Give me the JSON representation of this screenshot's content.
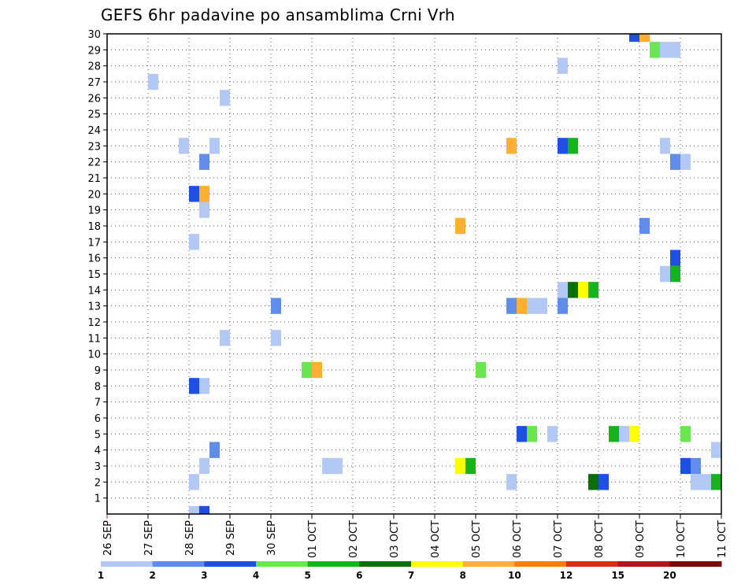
{
  "chart_data": {
    "type": "heatmap",
    "title": "GEFS 6hr padavine po ansamblima Crni Vrh",
    "xlabel": "",
    "ylabel": "",
    "x_ticks": [
      "26 SEP",
      "27 SEP",
      "28 SEP",
      "29 SEP",
      "30 SEP",
      "01 OCT",
      "02 OCT",
      "03 OCT",
      "04 OCT",
      "05 OCT",
      "06 OCT",
      "07 OCT",
      "08 OCT",
      "09 OCT",
      "10 OCT",
      "11 OCT"
    ],
    "xlim": [
      0,
      15
    ],
    "y_ticks": [
      1,
      2,
      3,
      4,
      5,
      6,
      7,
      8,
      9,
      10,
      11,
      12,
      13,
      14,
      15,
      16,
      17,
      18,
      19,
      20,
      21,
      22,
      23,
      24,
      25,
      26,
      27,
      28,
      29,
      30
    ],
    "ylim": [
      0,
      30
    ],
    "grid": true,
    "colorbar": {
      "labels": [
        "1",
        "2",
        "3",
        "4",
        "5",
        "6",
        "7",
        "8",
        "10",
        "12",
        "15",
        "20"
      ],
      "colors": [
        "#b4c8f5",
        "#5f8de8",
        "#1e4fe0",
        "#6ae650",
        "#15b41e",
        "#0a6e0a",
        "#ffff00",
        "#ffb030",
        "#ff7d00",
        "#e02a14",
        "#b4141e",
        "#780a0a"
      ]
    },
    "cells_note_units": "x in days since 26 SEP 00z, y = ensemble member, c = colour class index",
    "cells": [
      {
        "x": 2.0,
        "y": 0,
        "c": 0
      },
      {
        "x": 2.25,
        "y": 0,
        "c": 2
      },
      {
        "x": 2.0,
        "y": 2,
        "c": 0
      },
      {
        "x": 2.25,
        "y": 3,
        "c": 0
      },
      {
        "x": 5.25,
        "y": 3,
        "c": 0
      },
      {
        "x": 5.5,
        "y": 3,
        "c": 0
      },
      {
        "x": 8.5,
        "y": 3,
        "c": 6
      },
      {
        "x": 8.75,
        "y": 3,
        "c": 4
      },
      {
        "x": 14.0,
        "y": 3,
        "c": 2
      },
      {
        "x": 14.25,
        "y": 3,
        "c": 1
      },
      {
        "x": 2.5,
        "y": 4,
        "c": 1
      },
      {
        "x": 14.75,
        "y": 4,
        "c": 0
      },
      {
        "x": 10.0,
        "y": 5,
        "c": 2
      },
      {
        "x": 10.25,
        "y": 5,
        "c": 3
      },
      {
        "x": 10.75,
        "y": 5,
        "c": 0
      },
      {
        "x": 12.25,
        "y": 5,
        "c": 4
      },
      {
        "x": 12.5,
        "y": 5,
        "c": 0
      },
      {
        "x": 12.75,
        "y": 5,
        "c": 6
      },
      {
        "x": 14.0,
        "y": 5,
        "c": 3
      },
      {
        "x": 2.0,
        "y": 8,
        "c": 2
      },
      {
        "x": 2.25,
        "y": 8,
        "c": 0
      },
      {
        "x": 4.75,
        "y": 9,
        "c": 3
      },
      {
        "x": 5.0,
        "y": 9,
        "c": 7
      },
      {
        "x": 9.0,
        "y": 9,
        "c": 3
      },
      {
        "x": 2.75,
        "y": 11,
        "c": 0
      },
      {
        "x": 4.0,
        "y": 11,
        "c": 0
      },
      {
        "x": 4.0,
        "y": 13,
        "c": 1
      },
      {
        "x": 9.75,
        "y": 13,
        "c": 1
      },
      {
        "x": 10.0,
        "y": 13,
        "c": 7
      },
      {
        "x": 10.25,
        "y": 13,
        "c": 0
      },
      {
        "x": 10.5,
        "y": 13,
        "c": 0
      },
      {
        "x": 11.0,
        "y": 13,
        "c": 1
      },
      {
        "x": 11.0,
        "y": 14,
        "c": 0
      },
      {
        "x": 11.25,
        "y": 14,
        "c": 5
      },
      {
        "x": 11.5,
        "y": 14,
        "c": 6
      },
      {
        "x": 11.75,
        "y": 14,
        "c": 4
      },
      {
        "x": 13.5,
        "y": 15,
        "c": 0
      },
      {
        "x": 13.75,
        "y": 15,
        "c": 4
      },
      {
        "x": 13.75,
        "y": 16,
        "c": 2
      },
      {
        "x": 2.0,
        "y": 17,
        "c": 0
      },
      {
        "x": 8.5,
        "y": 18,
        "c": 7
      },
      {
        "x": 13.0,
        "y": 18,
        "c": 1
      },
      {
        "x": 2.25,
        "y": 19,
        "c": 0
      },
      {
        "x": 2.0,
        "y": 20,
        "c": 2
      },
      {
        "x": 2.25,
        "y": 20,
        "c": 7
      },
      {
        "x": 2.25,
        "y": 22,
        "c": 1
      },
      {
        "x": 13.75,
        "y": 22,
        "c": 1
      },
      {
        "x": 14.0,
        "y": 22,
        "c": 0
      },
      {
        "x": 1.75,
        "y": 23,
        "c": 0
      },
      {
        "x": 2.5,
        "y": 23,
        "c": 0
      },
      {
        "x": 9.75,
        "y": 23,
        "c": 7
      },
      {
        "x": 11.0,
        "y": 23,
        "c": 2
      },
      {
        "x": 11.25,
        "y": 23,
        "c": 4
      },
      {
        "x": 13.5,
        "y": 23,
        "c": 0
      },
      {
        "x": 2.75,
        "y": 26,
        "c": 0
      },
      {
        "x": 1.0,
        "y": 27,
        "c": 0
      },
      {
        "x": 11.0,
        "y": 28,
        "c": 0
      },
      {
        "x": 13.25,
        "y": 29,
        "c": 3
      },
      {
        "x": 13.5,
        "y": 29,
        "c": 0
      },
      {
        "x": 13.75,
        "y": 29,
        "c": 0
      },
      {
        "x": 12.75,
        "y": 30,
        "c": 2
      },
      {
        "x": 13.0,
        "y": 30,
        "c": 7
      },
      {
        "x": 9.75,
        "y": 2,
        "c": 0
      },
      {
        "x": 11.75,
        "y": 2,
        "c": 5
      },
      {
        "x": 12.0,
        "y": 2,
        "c": 2
      },
      {
        "x": 14.25,
        "y": 2,
        "c": 0
      },
      {
        "x": 14.5,
        "y": 2,
        "c": 0
      },
      {
        "x": 14.75,
        "y": 2,
        "c": 4
      }
    ]
  }
}
